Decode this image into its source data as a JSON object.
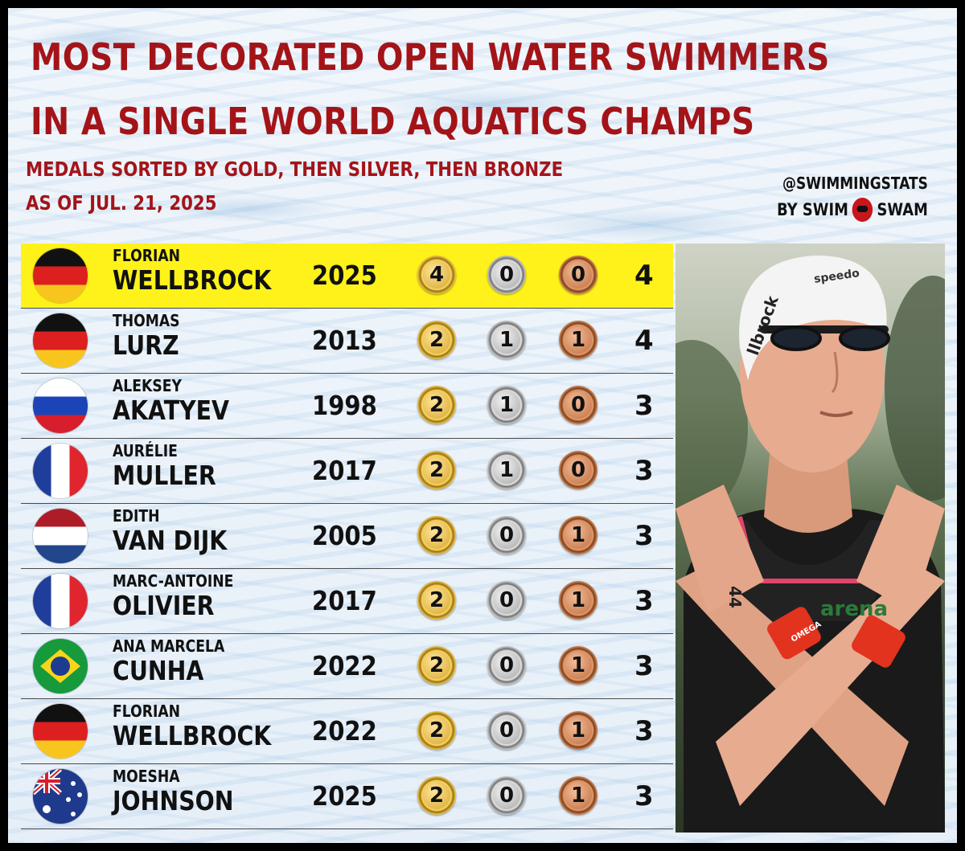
{
  "header": {
    "title_line1": "MOST DECORATED OPEN WATER SWIMMERS",
    "title_line2": "IN A SINGLE WORLD AQUATICS CHAMPS",
    "subtitle_line1": "MEDALS SORTED BY GOLD, THEN SILVER, THEN BRONZE",
    "subtitle_line2": "AS OF JUL. 21, 2025"
  },
  "credit": {
    "handle": "@SWIMMINGSTATS",
    "by": "BY SWIM",
    "brand": "SWAM"
  },
  "rows": [
    {
      "first": "FLORIAN",
      "last": "WELLBROCK",
      "year": "2025",
      "gold": "4",
      "silver": "0",
      "bronze": "0",
      "total": "4",
      "flag": "de"
    },
    {
      "first": "THOMAS",
      "last": "LURZ",
      "year": "2013",
      "gold": "2",
      "silver": "1",
      "bronze": "1",
      "total": "4",
      "flag": "de"
    },
    {
      "first": "ALEKSEY",
      "last": "AKATYEV",
      "year": "1998",
      "gold": "2",
      "silver": "1",
      "bronze": "0",
      "total": "3",
      "flag": "ru"
    },
    {
      "first": "AURÉLIE",
      "last": "MULLER",
      "year": "2017",
      "gold": "2",
      "silver": "1",
      "bronze": "0",
      "total": "3",
      "flag": "fr"
    },
    {
      "first": "EDITH",
      "last": "VAN DIJK",
      "year": "2005",
      "gold": "2",
      "silver": "0",
      "bronze": "1",
      "total": "3",
      "flag": "nl"
    },
    {
      "first": "MARC-ANTOINE",
      "last": "OLIVIER",
      "year": "2017",
      "gold": "2",
      "silver": "0",
      "bronze": "1",
      "total": "3",
      "flag": "fr"
    },
    {
      "first": "ANA MARCELA",
      "last": "CUNHA",
      "year": "2022",
      "gold": "2",
      "silver": "0",
      "bronze": "1",
      "total": "3",
      "flag": "br"
    },
    {
      "first": "FLORIAN",
      "last": "WELLBROCK",
      "year": "2022",
      "gold": "2",
      "silver": "0",
      "bronze": "1",
      "total": "3",
      "flag": "de"
    },
    {
      "first": "MOESHA",
      "last": "JOHNSON",
      "year": "2025",
      "gold": "2",
      "silver": "0",
      "bronze": "1",
      "total": "3",
      "flag": "au"
    }
  ],
  "photo": {
    "cap_text": "llbrock",
    "cap_brand": "speedo",
    "suit_brand": "arena",
    "band_text": "OMEGA",
    "hand_number": "44"
  },
  "colors": {
    "title_red": "#a31419",
    "highlight_yellow": "#fff21a"
  }
}
